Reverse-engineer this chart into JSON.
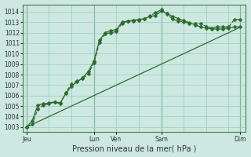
{
  "xlabel": "Pression niveau de la mer( hPa )",
  "background_color": "#cce8e0",
  "grid_color": "#99ccbb",
  "line_color": "#2d6a2d",
  "vline_color": "#4a8a5a",
  "ylim": [
    1002.5,
    1014.7
  ],
  "yticks": [
    1003,
    1004,
    1005,
    1006,
    1007,
    1008,
    1009,
    1010,
    1011,
    1012,
    1013,
    1014
  ],
  "xlim": [
    -4,
    234
  ],
  "xtick_positions": [
    0,
    72,
    96,
    144,
    228
  ],
  "xtick_labels": [
    "Jeu",
    "Lun",
    "Ven",
    "Sam",
    "Dim"
  ],
  "vlines": [
    0,
    72,
    144,
    228
  ],
  "series1_x": [
    0,
    6,
    12,
    18,
    24,
    30,
    36,
    42,
    48,
    54,
    60,
    66,
    72,
    78,
    84,
    90,
    96,
    102,
    108,
    114,
    120,
    126,
    132,
    138,
    144,
    150,
    156,
    162,
    168,
    174,
    180,
    186,
    192,
    198,
    204,
    210,
    216,
    222,
    228
  ],
  "series1_y": [
    1003.0,
    1003.3,
    1004.7,
    1005.1,
    1005.2,
    1005.4,
    1005.2,
    1006.3,
    1007.1,
    1007.4,
    1007.6,
    1008.1,
    1009.1,
    1011.1,
    1011.9,
    1012.0,
    1012.1,
    1012.9,
    1013.1,
    1013.1,
    1013.2,
    1013.3,
    1013.6,
    1013.9,
    1014.2,
    1013.8,
    1013.3,
    1013.1,
    1013.05,
    1012.85,
    1012.85,
    1012.85,
    1012.6,
    1012.45,
    1012.55,
    1012.55,
    1012.55,
    1013.25,
    1013.25
  ],
  "series2_x": [
    0,
    6,
    12,
    18,
    24,
    30,
    36,
    42,
    48,
    54,
    60,
    66,
    72,
    78,
    84,
    90,
    96,
    102,
    108,
    114,
    120,
    126,
    132,
    138,
    144,
    150,
    156,
    162,
    168,
    174,
    180,
    186,
    192,
    198,
    204,
    210,
    216,
    222,
    228
  ],
  "series2_y": [
    1003.0,
    1003.6,
    1005.1,
    1005.2,
    1005.3,
    1005.4,
    1005.3,
    1006.2,
    1006.9,
    1007.3,
    1007.7,
    1008.3,
    1009.3,
    1011.3,
    1012.0,
    1012.2,
    1012.3,
    1013.0,
    1013.1,
    1013.2,
    1013.25,
    1013.35,
    1013.55,
    1013.65,
    1014.05,
    1013.85,
    1013.55,
    1013.35,
    1013.15,
    1012.95,
    1012.75,
    1012.55,
    1012.45,
    1012.35,
    1012.35,
    1012.35,
    1012.45,
    1012.55,
    1012.55
  ],
  "series3_x": [
    0,
    228
  ],
  "series3_y": [
    1003.0,
    1012.5
  ],
  "series1_linestyle": "--",
  "series2_linestyle": "-",
  "series3_linestyle": "-",
  "marker_size": 2.5,
  "linewidth": 0.9,
  "xlabel_fontsize": 7,
  "tick_fontsize": 5.5
}
